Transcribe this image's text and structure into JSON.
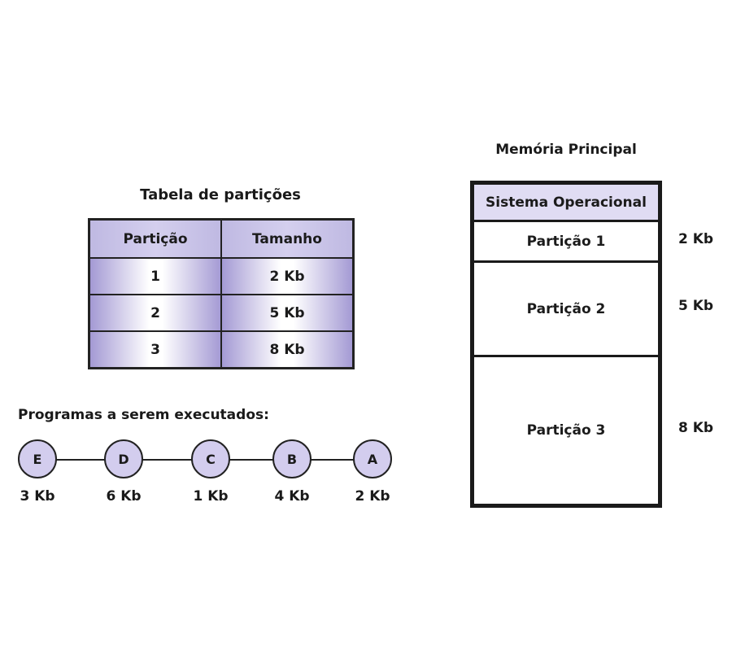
{
  "partition_table": {
    "title": "Tabela de partições",
    "headers": [
      "Partição",
      "Tamanho"
    ],
    "rows": [
      [
        "1",
        "2 Kb"
      ],
      [
        "2",
        "5 Kb"
      ],
      [
        "3",
        "8 Kb"
      ]
    ]
  },
  "programs": {
    "title": "Programas a serem executados:",
    "items": [
      {
        "label": "E",
        "size": "3 Kb"
      },
      {
        "label": "D",
        "size": "6 Kb"
      },
      {
        "label": "C",
        "size": "1 Kb"
      },
      {
        "label": "B",
        "size": "4 Kb"
      },
      {
        "label": "A",
        "size": "2 Kb"
      }
    ]
  },
  "memory": {
    "title": "Memória Principal",
    "os_label": "Sistema Operacional",
    "partitions": [
      {
        "label": "Partição 1",
        "size": "2 Kb"
      },
      {
        "label": "Partição 2",
        "size": "5 Kb"
      },
      {
        "label": "Partição 3",
        "size": "8 Kb"
      }
    ]
  },
  "colors": {
    "header_fill": "#bfb9e2",
    "cell_gradient_edge": "#a49ad4",
    "node_fill": "#d3cdee",
    "os_fill": "#e0dcf3",
    "border": "#222222"
  }
}
